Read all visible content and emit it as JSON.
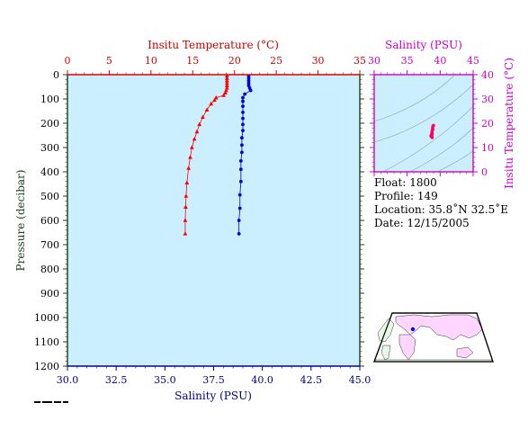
{
  "chart_data": [
    {
      "type": "scatter",
      "top_axis": {
        "label": "Insitu Temperature (°C)",
        "range": [
          0,
          35
        ],
        "ticks": [
          "0",
          "5",
          "10",
          "15",
          "20",
          "25",
          "30",
          "35"
        ],
        "color": "#cc0000"
      },
      "bottom_axis": {
        "label": "Salinity (PSU)",
        "range": [
          30,
          45
        ],
        "ticks": [
          "30.0",
          "32.5",
          "35.0",
          "37.5",
          "40.0",
          "42.5",
          "45.0"
        ],
        "color": "#000080"
      },
      "left_axis": {
        "label": "Pressure (decibar)",
        "range": [
          0,
          1200
        ],
        "inverted": true,
        "ticks": [
          "0",
          "100",
          "200",
          "300",
          "400",
          "500",
          "600",
          "700",
          "800",
          "900",
          "1000",
          "1100",
          "1200"
        ],
        "color": "#000000"
      },
      "background": "#ccefff",
      "series": [
        {
          "kind": "temperature",
          "color": "#ff0000",
          "marker": "triangle",
          "x_axis": "top",
          "points": [
            [
              19.1,
              5
            ],
            [
              19.1,
              15
            ],
            [
              19.1,
              25
            ],
            [
              19.1,
              35
            ],
            [
              19.1,
              45
            ],
            [
              19.1,
              55
            ],
            [
              19.0,
              65
            ],
            [
              18.9,
              75
            ],
            [
              18.7,
              85
            ],
            [
              17.8,
              95
            ],
            [
              17.6,
              105
            ],
            [
              17.2,
              120
            ],
            [
              16.7,
              145
            ],
            [
              16.2,
              175
            ],
            [
              15.8,
              205
            ],
            [
              15.5,
              235
            ],
            [
              15.2,
              265
            ],
            [
              14.9,
              300
            ],
            [
              14.7,
              340
            ],
            [
              14.5,
              385
            ],
            [
              14.3,
              445
            ],
            [
              14.2,
              500
            ],
            [
              14.15,
              545
            ],
            [
              14.1,
              600
            ],
            [
              14.1,
              655
            ]
          ]
        },
        {
          "kind": "salinity",
          "color": "#0000dd",
          "marker": "circle",
          "x_axis": "bottom",
          "points": [
            [
              39.3,
              5
            ],
            [
              39.3,
              15
            ],
            [
              39.3,
              25
            ],
            [
              39.3,
              35
            ],
            [
              39.3,
              45
            ],
            [
              39.35,
              55
            ],
            [
              39.4,
              65
            ],
            [
              39.1,
              80
            ],
            [
              39.0,
              95
            ],
            [
              39.0,
              110
            ],
            [
              39.0,
              130
            ],
            [
              39.0,
              155
            ],
            [
              39.0,
              180
            ],
            [
              39.0,
              205
            ],
            [
              39.0,
              230
            ],
            [
              38.95,
              260
            ],
            [
              38.95,
              290
            ],
            [
              38.95,
              320
            ],
            [
              38.9,
              355
            ],
            [
              38.9,
              390
            ],
            [
              38.9,
              440
            ],
            [
              38.85,
              495
            ],
            [
              38.85,
              550
            ],
            [
              38.8,
              600
            ],
            [
              38.8,
              655
            ]
          ]
        }
      ]
    },
    {
      "type": "scatter",
      "top_axis": {
        "label": "Salinity (PSU)",
        "range": [
          30,
          45
        ],
        "ticks": [
          "30",
          "35",
          "40",
          "45"
        ],
        "color": "#cc00cc"
      },
      "right_axis": {
        "label": "Insitu Temperature (°C)",
        "range": [
          0,
          40
        ],
        "ticks": [
          "0",
          "10",
          "20",
          "30",
          "40"
        ],
        "color": "#cc00cc"
      },
      "background": "#ccefff",
      "series": [
        {
          "kind": "temperature-salinity",
          "color": "#ff0066",
          "marker": "circle",
          "points": [
            [
              38.8,
              14.1
            ],
            [
              38.75,
              14.3
            ],
            [
              38.7,
              14.6
            ],
            [
              38.65,
              15.0
            ],
            [
              38.7,
              15.5
            ],
            [
              38.75,
              16.2
            ],
            [
              38.8,
              17.0
            ],
            [
              38.85,
              18.0
            ],
            [
              38.9,
              18.8
            ],
            [
              39.0,
              19.1
            ],
            [
              38.9,
              17.5
            ],
            [
              38.8,
              15.8
            ],
            [
              38.75,
              15.2
            ],
            [
              38.6,
              14.8
            ]
          ]
        }
      ]
    }
  ],
  "info": {
    "float": "Float:  1800",
    "profile": "Profile:  149",
    "location": "Location:  35.8˚N  32.5˚E",
    "date": "Date:  12/15/2005"
  },
  "colors": {
    "map_land": "#ffd6ff",
    "map_ocean": "#ffffff",
    "map_lowland": "#e8f8e8",
    "float_marker": "#0000ff"
  }
}
